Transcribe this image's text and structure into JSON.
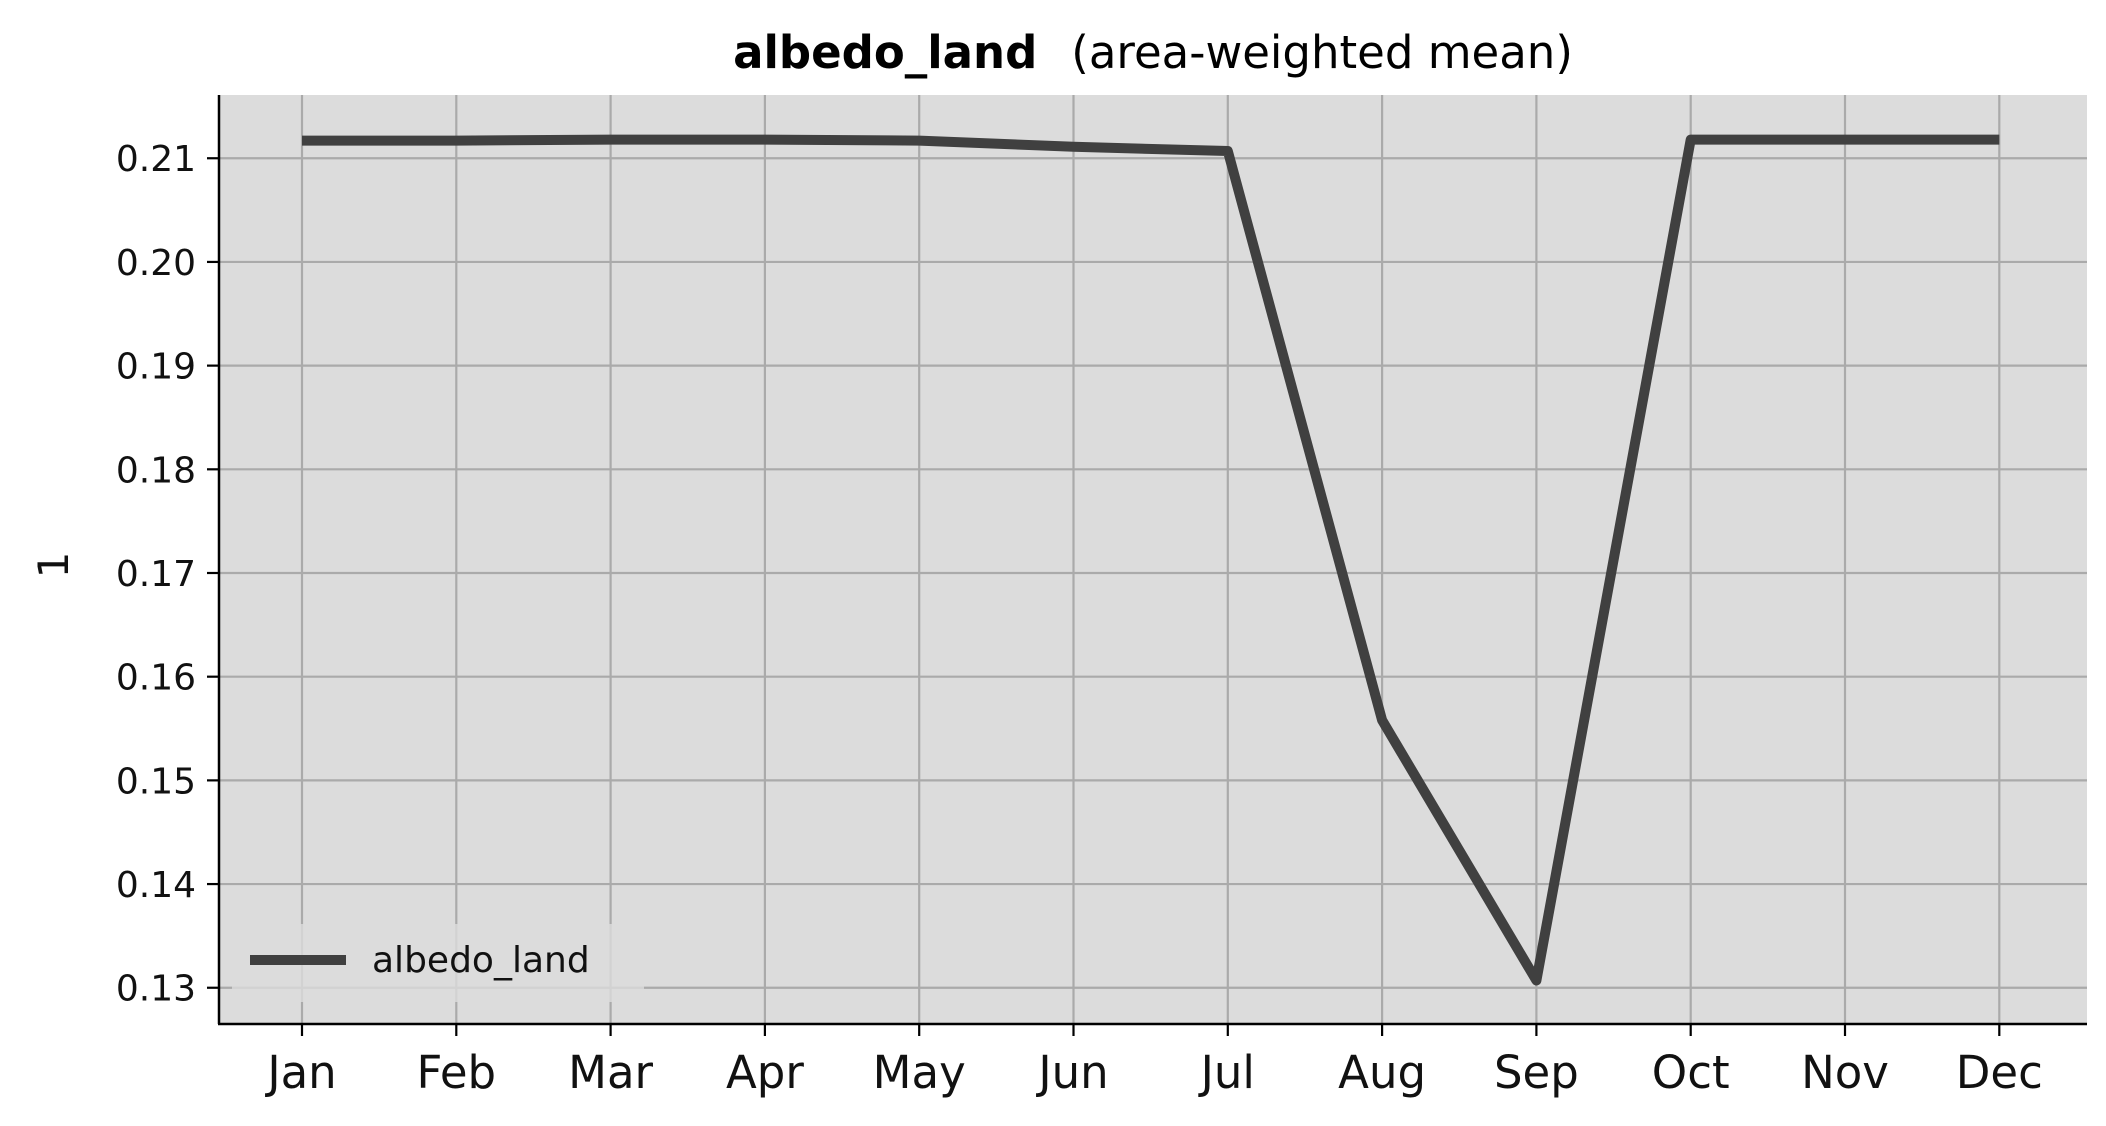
{
  "chart_data": {
    "type": "line",
    "title": "albedo_land",
    "subtitle": "(area-weighted mean)",
    "xlabel": "",
    "ylabel": "1",
    "categories": [
      "Jan",
      "Feb",
      "Mar",
      "Apr",
      "May",
      "Jun",
      "Jul",
      "Aug",
      "Sep",
      "Oct",
      "Nov",
      "Dec"
    ],
    "series": [
      {
        "name": "albedo_land",
        "color": "#404040",
        "values": [
          0.2117,
          0.2117,
          0.2118,
          0.2118,
          0.2117,
          0.2111,
          0.2107,
          0.1558,
          0.1307,
          0.2118,
          0.2118,
          0.2118
        ]
      }
    ],
    "yticks": [
      "0.13",
      "0.14",
      "0.15",
      "0.16",
      "0.17",
      "0.18",
      "0.19",
      "0.20",
      "0.21"
    ],
    "ylim": [
      0.1266,
      0.2161
    ],
    "grid": true,
    "legend_position": "lower-left",
    "background_color": "#dcdcdc",
    "grid_color": "#aaaaaa"
  }
}
